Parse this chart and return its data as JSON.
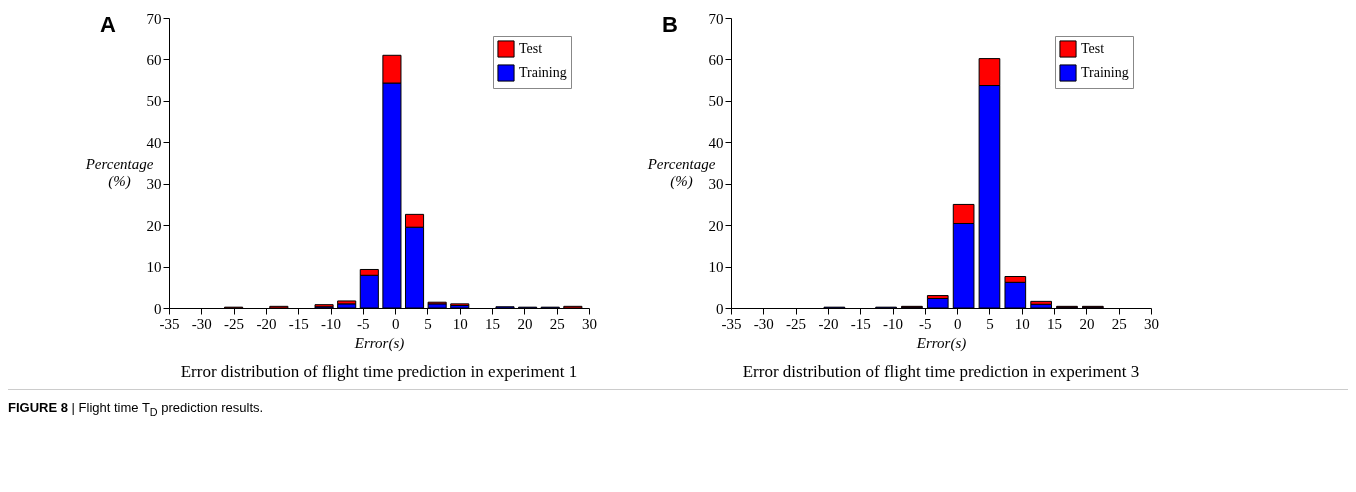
{
  "chart_data": [
    {
      "type": "bar",
      "title": "Error  distribution of flight time prediction in experiment 1",
      "xlabel": "Error(s)",
      "ylabel": "Percentage (%)",
      "annotations": [
        "A",
        "FIGURE 8 | Flight time T$_{D}$ prediction results."
      ],
      "x": [
        -25,
        -18,
        -11,
        -7.5,
        -4,
        -0.5,
        3,
        6.5,
        10,
        17,
        20.5,
        24,
        27.5
      ],
      "stacked": true,
      "series": [
        {
          "name": "Training",
          "color": "#0000ff",
          "values": [
            null,
            null,
            0.3,
            1.0,
            7.9,
            54.3,
            19.5,
            1.0,
            0.6,
            0.3,
            0.2,
            0.2,
            null
          ]
        },
        {
          "name": "Test",
          "color": "#ff0000",
          "values": [
            0.2,
            0.4,
            0.5,
            0.7,
            1.4,
            6.7,
            3.1,
            0.4,
            0.4,
            null,
            null,
            null,
            0.4
          ]
        }
      ],
      "xlim": [
        -35,
        30
      ],
      "xticks": [
        -35,
        -30,
        -25,
        -20,
        -15,
        -10,
        -5,
        0,
        5,
        10,
        15,
        20,
        25,
        30
      ],
      "ylim": [
        0,
        70
      ],
      "yticks": [
        0,
        10,
        20,
        30,
        40,
        50,
        60,
        70
      ],
      "legend": "top right"
    },
    {
      "type": "bar",
      "title": "Error  distribution of flight time prediction in experiment 3",
      "xlabel": "Error(s)",
      "ylabel": "Percentage (%)",
      "annotations": [
        "B"
      ],
      "x": [
        -19,
        -11,
        -7,
        -3,
        1,
        5,
        9,
        13,
        17,
        21
      ],
      "stacked": true,
      "series": [
        {
          "name": "Training",
          "color": "#0000ff",
          "values": [
            0.2,
            0.2,
            0.2,
            2.3,
            20.4,
            53.7,
            6.2,
            0.9,
            0.2,
            0.2
          ]
        },
        {
          "name": "Test",
          "color": "#ff0000",
          "values": [
            null,
            null,
            0.2,
            0.7,
            4.6,
            6.5,
            1.4,
            0.7,
            0.2,
            0.2
          ]
        }
      ],
      "xlim": [
        -35,
        30
      ],
      "xticks": [
        -35,
        -30,
        -25,
        -20,
        -15,
        -10,
        -5,
        0,
        5,
        10,
        15,
        20,
        25,
        30
      ],
      "ylim": [
        0,
        70
      ],
      "yticks": [
        0,
        10,
        20,
        30,
        40,
        50,
        60,
        70
      ],
      "legend": "top right"
    }
  ]
}
